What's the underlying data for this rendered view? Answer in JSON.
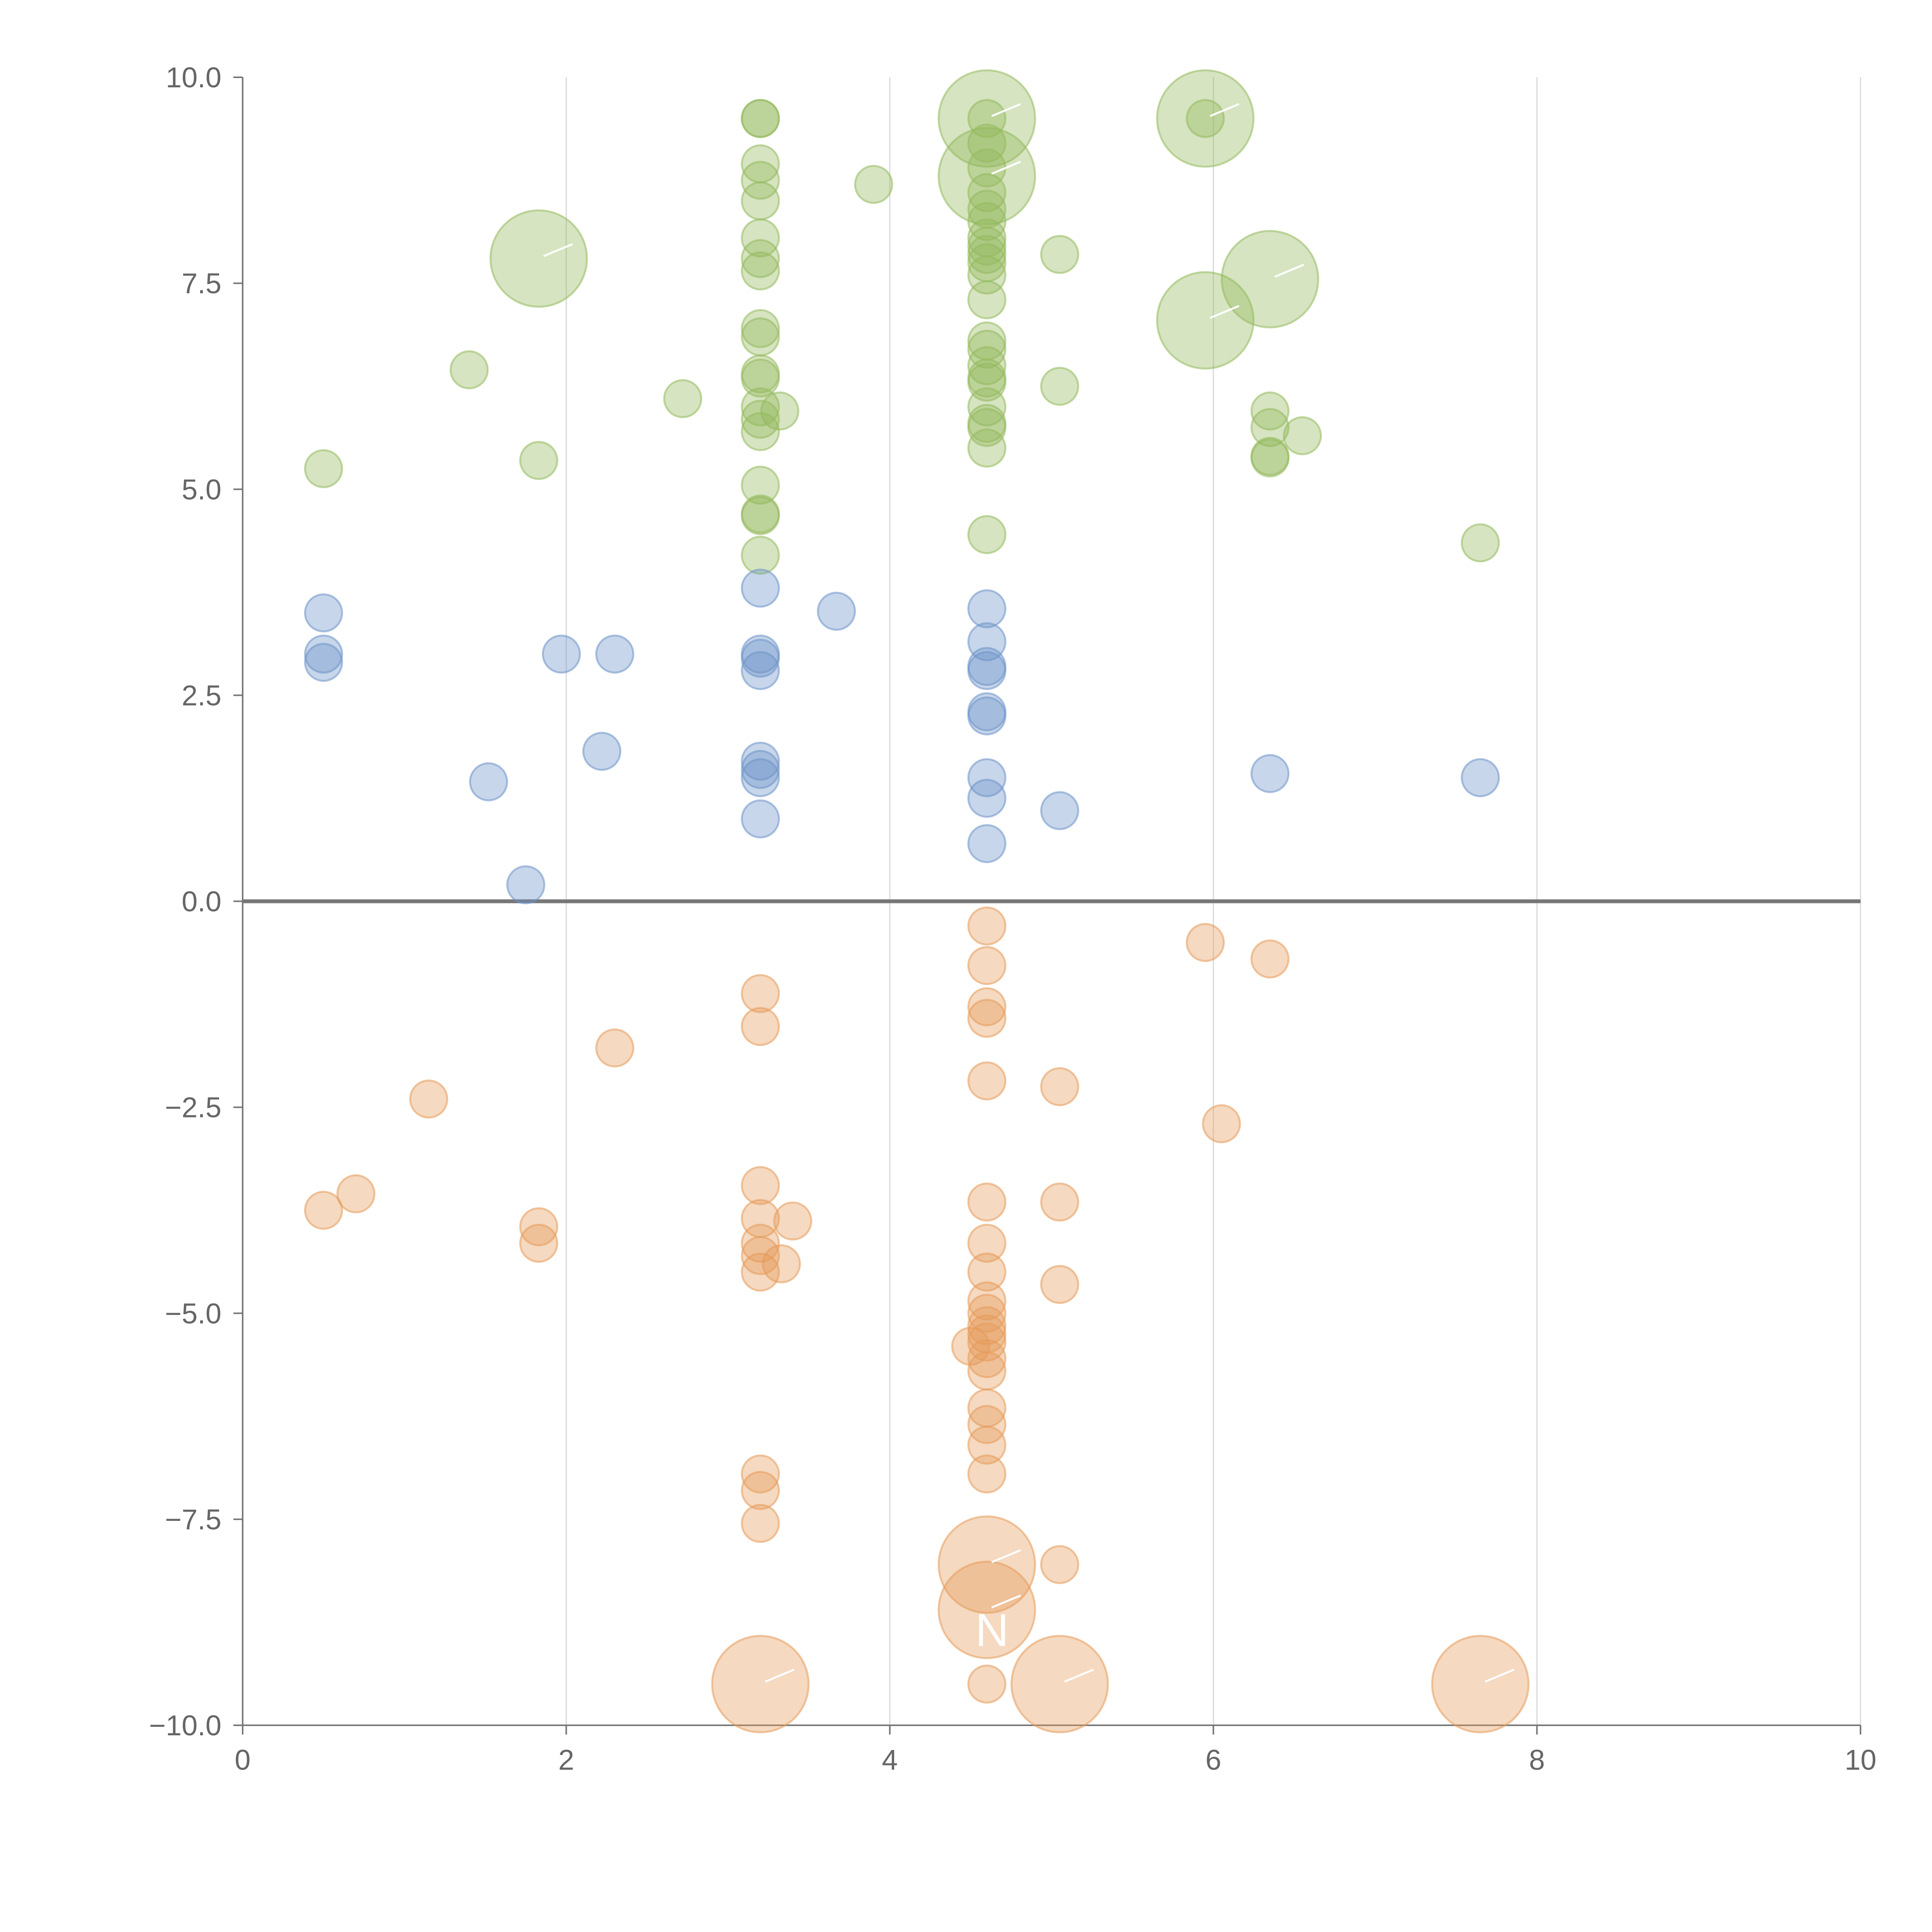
{
  "chart_data": {
    "type": "scatter",
    "title": "",
    "xlabel": "",
    "ylabel": "",
    "xlim": [
      0,
      10
    ],
    "ylim": [
      -10,
      10
    ],
    "grid": "vertical",
    "legend": "none",
    "x_ticks": [
      0,
      2,
      4,
      6,
      8,
      10
    ],
    "x_tick_labels": [
      "0",
      "2",
      "4",
      "6",
      "8",
      "10"
    ],
    "y_ticks": [
      10,
      7.5,
      5,
      2.5,
      0,
      -2.5,
      -5,
      -7.5,
      -10
    ],
    "y_tick_labels": [
      "10.0",
      "7.5",
      "5.0",
      "2.5",
      "0.0",
      "−2.5",
      "−5.0",
      "−7.5",
      "−10.0"
    ],
    "annotations": [
      {
        "text": "N",
        "x": 4.6,
        "y": -8.85
      }
    ],
    "series": [
      {
        "name": "green",
        "color": "#94b95c",
        "points": [
          {
            "x": 3.2,
            "y": 9.5,
            "size": 1
          },
          {
            "x": 3.2,
            "y": 9.5,
            "size": 1
          },
          {
            "x": 3.2,
            "y": 8.95,
            "size": 1
          },
          {
            "x": 3.2,
            "y": 8.75,
            "size": 1
          },
          {
            "x": 3.2,
            "y": 8.5,
            "size": 1
          },
          {
            "x": 3.2,
            "y": 8.05,
            "size": 1
          },
          {
            "x": 3.2,
            "y": 7.8,
            "size": 1
          },
          {
            "x": 3.2,
            "y": 7.65,
            "size": 1
          },
          {
            "x": 3.2,
            "y": 6.95,
            "size": 1
          },
          {
            "x": 3.2,
            "y": 6.85,
            "size": 1
          },
          {
            "x": 3.2,
            "y": 6.4,
            "size": 1
          },
          {
            "x": 3.2,
            "y": 6.35,
            "size": 1
          },
          {
            "x": 3.2,
            "y": 6.0,
            "size": 1
          },
          {
            "x": 3.32,
            "y": 5.95,
            "size": 1
          },
          {
            "x": 3.2,
            "y": 5.85,
            "size": 1
          },
          {
            "x": 3.2,
            "y": 5.7,
            "size": 1
          },
          {
            "x": 3.2,
            "y": 5.05,
            "size": 1
          },
          {
            "x": 3.2,
            "y": 4.7,
            "size": 1
          },
          {
            "x": 3.2,
            "y": 4.68,
            "size": 1
          },
          {
            "x": 3.2,
            "y": 4.2,
            "size": 1
          },
          {
            "x": 3.9,
            "y": 8.7,
            "size": 1
          },
          {
            "x": 4.6,
            "y": 9.5,
            "size": 2.6
          },
          {
            "x": 4.6,
            "y": 9.5,
            "size": 1
          },
          {
            "x": 4.6,
            "y": 9.2,
            "size": 1
          },
          {
            "x": 4.6,
            "y": 8.8,
            "size": 2.6
          },
          {
            "x": 4.6,
            "y": 8.9,
            "size": 1
          },
          {
            "x": 4.6,
            "y": 8.6,
            "size": 1
          },
          {
            "x": 4.6,
            "y": 8.4,
            "size": 1
          },
          {
            "x": 4.6,
            "y": 8.25,
            "size": 1
          },
          {
            "x": 4.6,
            "y": 8.05,
            "size": 1
          },
          {
            "x": 4.6,
            "y": 7.95,
            "size": 1
          },
          {
            "x": 4.6,
            "y": 7.85,
            "size": 1
          },
          {
            "x": 4.6,
            "y": 7.75,
            "size": 1
          },
          {
            "x": 4.6,
            "y": 7.6,
            "size": 1
          },
          {
            "x": 4.6,
            "y": 7.3,
            "size": 1
          },
          {
            "x": 4.6,
            "y": 6.8,
            "size": 1
          },
          {
            "x": 4.6,
            "y": 6.7,
            "size": 1
          },
          {
            "x": 4.6,
            "y": 6.5,
            "size": 1
          },
          {
            "x": 4.6,
            "y": 6.35,
            "size": 1
          },
          {
            "x": 4.6,
            "y": 6.3,
            "size": 1
          },
          {
            "x": 4.6,
            "y": 6.0,
            "size": 1
          },
          {
            "x": 4.6,
            "y": 5.8,
            "size": 1
          },
          {
            "x": 4.6,
            "y": 5.75,
            "size": 1
          },
          {
            "x": 4.6,
            "y": 5.5,
            "size": 1
          },
          {
            "x": 4.6,
            "y": 4.45,
            "size": 1
          },
          {
            "x": 5.05,
            "y": 7.85,
            "size": 1
          },
          {
            "x": 5.05,
            "y": 6.25,
            "size": 1
          },
          {
            "x": 5.95,
            "y": 9.5,
            "size": 2.6
          },
          {
            "x": 5.95,
            "y": 9.5,
            "size": 1
          },
          {
            "x": 5.95,
            "y": 7.05,
            "size": 2.6
          },
          {
            "x": 6.35,
            "y": 7.55,
            "size": 2.6
          },
          {
            "x": 6.35,
            "y": 5.95,
            "size": 1
          },
          {
            "x": 6.35,
            "y": 5.75,
            "size": 1
          },
          {
            "x": 6.35,
            "y": 5.4,
            "size": 1
          },
          {
            "x": 6.35,
            "y": 5.38,
            "size": 1
          },
          {
            "x": 6.55,
            "y": 5.65,
            "size": 1
          },
          {
            "x": 7.65,
            "y": 4.35,
            "size": 1
          },
          {
            "x": 0.5,
            "y": 5.25,
            "size": 1
          },
          {
            "x": 1.4,
            "y": 6.45,
            "size": 1
          },
          {
            "x": 1.83,
            "y": 7.8,
            "size": 2.6
          },
          {
            "x": 1.83,
            "y": 5.35,
            "size": 1
          },
          {
            "x": 2.72,
            "y": 6.1,
            "size": 1
          }
        ]
      },
      {
        "name": "blue",
        "color": "#6d93c9",
        "points": [
          {
            "x": 0.5,
            "y": 3.5,
            "size": 1
          },
          {
            "x": 0.5,
            "y": 3.0,
            "size": 1
          },
          {
            "x": 0.5,
            "y": 2.9,
            "size": 1
          },
          {
            "x": 1.52,
            "y": 1.45,
            "size": 1
          },
          {
            "x": 1.75,
            "y": 0.2,
            "size": 1
          },
          {
            "x": 1.97,
            "y": 3.0,
            "size": 1
          },
          {
            "x": 2.22,
            "y": 1.82,
            "size": 1
          },
          {
            "x": 2.3,
            "y": 3.0,
            "size": 1
          },
          {
            "x": 3.2,
            "y": 3.8,
            "size": 1
          },
          {
            "x": 3.2,
            "y": 3.0,
            "size": 1
          },
          {
            "x": 3.2,
            "y": 2.95,
            "size": 1
          },
          {
            "x": 3.2,
            "y": 2.8,
            "size": 1
          },
          {
            "x": 3.2,
            "y": 1.7,
            "size": 1
          },
          {
            "x": 3.2,
            "y": 1.6,
            "size": 1
          },
          {
            "x": 3.2,
            "y": 1.5,
            "size": 1
          },
          {
            "x": 3.2,
            "y": 1.0,
            "size": 1
          },
          {
            "x": 3.67,
            "y": 3.52,
            "size": 1
          },
          {
            "x": 4.6,
            "y": 3.55,
            "size": 1
          },
          {
            "x": 4.6,
            "y": 3.15,
            "size": 1
          },
          {
            "x": 4.6,
            "y": 2.85,
            "size": 1
          },
          {
            "x": 4.6,
            "y": 2.8,
            "size": 1
          },
          {
            "x": 4.6,
            "y": 2.3,
            "size": 1
          },
          {
            "x": 4.6,
            "y": 2.25,
            "size": 1
          },
          {
            "x": 4.6,
            "y": 1.5,
            "size": 1
          },
          {
            "x": 4.6,
            "y": 1.25,
            "size": 1
          },
          {
            "x": 4.6,
            "y": 0.7,
            "size": 1
          },
          {
            "x": 5.05,
            "y": 1.1,
            "size": 1
          },
          {
            "x": 6.35,
            "y": 1.55,
            "size": 1
          },
          {
            "x": 7.65,
            "y": 1.5,
            "size": 1
          }
        ]
      },
      {
        "name": "orange",
        "color": "#e69a5a",
        "points": [
          {
            "x": 0.5,
            "y": -3.75,
            "size": 1
          },
          {
            "x": 0.7,
            "y": -3.55,
            "size": 1
          },
          {
            "x": 1.15,
            "y": -2.4,
            "size": 1
          },
          {
            "x": 1.83,
            "y": -3.95,
            "size": 1
          },
          {
            "x": 1.83,
            "y": -4.15,
            "size": 1
          },
          {
            "x": 2.3,
            "y": -1.78,
            "size": 1
          },
          {
            "x": 3.2,
            "y": -1.12,
            "size": 1
          },
          {
            "x": 3.2,
            "y": -1.52,
            "size": 1
          },
          {
            "x": 3.2,
            "y": -3.45,
            "size": 1
          },
          {
            "x": 3.2,
            "y": -3.85,
            "size": 1
          },
          {
            "x": 3.2,
            "y": -4.15,
            "size": 1
          },
          {
            "x": 3.2,
            "y": -4.3,
            "size": 1
          },
          {
            "x": 3.2,
            "y": -4.5,
            "size": 1
          },
          {
            "x": 3.33,
            "y": -4.4,
            "size": 1
          },
          {
            "x": 3.4,
            "y": -3.88,
            "size": 1
          },
          {
            "x": 3.2,
            "y": -6.95,
            "size": 1
          },
          {
            "x": 3.2,
            "y": -7.15,
            "size": 1
          },
          {
            "x": 3.2,
            "y": -7.55,
            "size": 1
          },
          {
            "x": 3.2,
            "y": -9.5,
            "size": 2.6
          },
          {
            "x": 4.6,
            "y": -0.3,
            "size": 1
          },
          {
            "x": 4.6,
            "y": -0.78,
            "size": 1
          },
          {
            "x": 4.6,
            "y": -1.28,
            "size": 1
          },
          {
            "x": 4.6,
            "y": -1.42,
            "size": 1
          },
          {
            "x": 4.6,
            "y": -2.18,
            "size": 1
          },
          {
            "x": 4.6,
            "y": -3.65,
            "size": 1
          },
          {
            "x": 4.6,
            "y": -4.15,
            "size": 1
          },
          {
            "x": 4.6,
            "y": -4.5,
            "size": 1
          },
          {
            "x": 4.6,
            "y": -4.85,
            "size": 1
          },
          {
            "x": 4.6,
            "y": -5.0,
            "size": 1
          },
          {
            "x": 4.6,
            "y": -5.15,
            "size": 1
          },
          {
            "x": 4.6,
            "y": -5.25,
            "size": 1
          },
          {
            "x": 4.6,
            "y": -5.35,
            "size": 1
          },
          {
            "x": 4.5,
            "y": -5.4,
            "size": 1
          },
          {
            "x": 4.6,
            "y": -5.55,
            "size": 1
          },
          {
            "x": 4.6,
            "y": -5.7,
            "size": 1
          },
          {
            "x": 4.6,
            "y": -6.15,
            "size": 1
          },
          {
            "x": 4.6,
            "y": -6.35,
            "size": 1
          },
          {
            "x": 4.6,
            "y": -6.6,
            "size": 1
          },
          {
            "x": 4.6,
            "y": -6.95,
            "size": 1
          },
          {
            "x": 4.6,
            "y": -8.05,
            "size": 2.6
          },
          {
            "x": 4.6,
            "y": -8.6,
            "size": 2.6
          },
          {
            "x": 4.6,
            "y": -9.5,
            "size": 1
          },
          {
            "x": 5.05,
            "y": -2.25,
            "size": 1
          },
          {
            "x": 5.05,
            "y": -3.65,
            "size": 1
          },
          {
            "x": 5.05,
            "y": -4.65,
            "size": 1
          },
          {
            "x": 5.05,
            "y": -8.05,
            "size": 1
          },
          {
            "x": 5.05,
            "y": -9.5,
            "size": 2.6
          },
          {
            "x": 5.95,
            "y": -0.5,
            "size": 1
          },
          {
            "x": 6.05,
            "y": -2.7,
            "size": 1
          },
          {
            "x": 6.35,
            "y": -0.7,
            "size": 1
          },
          {
            "x": 7.65,
            "y": -9.5,
            "size": 2.6
          }
        ]
      }
    ]
  }
}
